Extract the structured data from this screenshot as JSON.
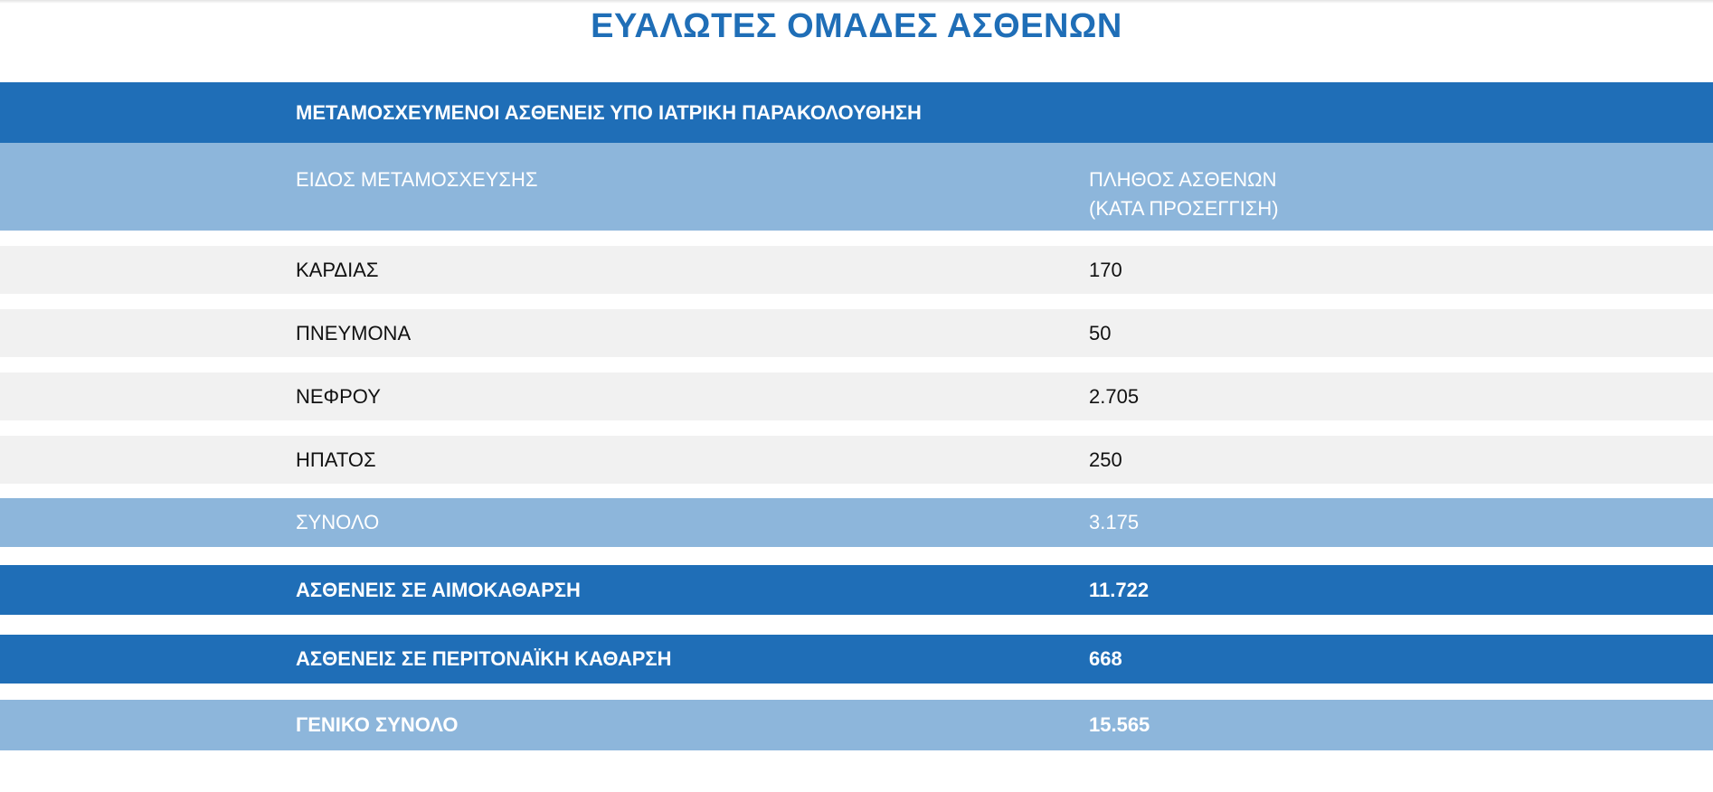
{
  "title": "ΕΥΑΛΩΤΕΣ ΟΜΑΔΕΣ ΑΣΘΕΝΩΝ",
  "section_header": "ΜΕΤΑΜΟΣΧΕΥΜΕΝΟΙ ΑΣΘΕΝΕΙΣ ΥΠΟ ΙΑΤΡΙΚΗ ΠΑΡΑΚΟΛΟΥΘΗΣΗ",
  "columns": {
    "type": "ΕΙΔΟΣ ΜΕΤΑΜΟΣΧΕΥΣΗΣ",
    "count_line1": "ΠΛΗΘΟΣ ΑΣΘΕΝΩΝ",
    "count_line2": "(ΚΑΤΑ ΠΡΟΣΕΓΓΙΣΗ)"
  },
  "rows": [
    {
      "label": "ΚΑΡΔΙΑΣ",
      "value": "170"
    },
    {
      "label": "ΠΝΕΥΜΟΝΑ",
      "value": "50"
    },
    {
      "label": "ΝΕΦΡΟΥ",
      "value": "2.705"
    },
    {
      "label": "ΗΠΑΤΟΣ",
      "value": "250"
    }
  ],
  "subtotal": {
    "label": "ΣΥΝΟΛΟ",
    "value": "3.175"
  },
  "hemodialysis": {
    "label": "ΑΣΘΕΝΕΙΣ ΣΕ ΑΙΜΟΚΑΘΑΡΣΗ",
    "value": "11.722"
  },
  "peritoneal": {
    "label": "ΑΣΘΕΝΕΙΣ ΣΕ ΠΕΡΙΤΟΝΑΪΚΗ ΚΑΘΑΡΣΗ",
    "value": "668"
  },
  "grand_total": {
    "label": "ΓΕΝΙΚΟ ΣΥΝΟΛΟ",
    "value": "15.565"
  },
  "colors": {
    "dark_blue": "#1f6eb7",
    "light_blue": "#8db6db",
    "grey": "#f1f1f1"
  }
}
